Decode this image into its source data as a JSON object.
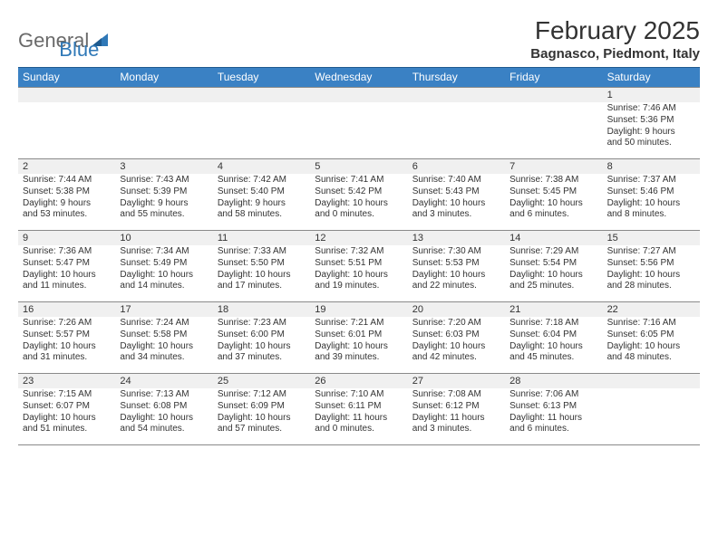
{
  "logo": {
    "text_gray": "General",
    "text_blue": "Blue"
  },
  "title": "February 2025",
  "subtitle": "Bagnasco, Piedmont, Italy",
  "colors": {
    "header_bg": "#3a81c4",
    "header_text": "#ffffff",
    "daynum_bg": "#f0f0f0",
    "border": "#8a8a8a",
    "text": "#333333",
    "logo_gray": "#6a6a6a",
    "logo_blue": "#2f78b7"
  },
  "day_headers": [
    "Sunday",
    "Monday",
    "Tuesday",
    "Wednesday",
    "Thursday",
    "Friday",
    "Saturday"
  ],
  "weeks": [
    [
      {
        "n": "",
        "lines": []
      },
      {
        "n": "",
        "lines": []
      },
      {
        "n": "",
        "lines": []
      },
      {
        "n": "",
        "lines": []
      },
      {
        "n": "",
        "lines": []
      },
      {
        "n": "",
        "lines": []
      },
      {
        "n": "1",
        "lines": [
          "Sunrise: 7:46 AM",
          "Sunset: 5:36 PM",
          "Daylight: 9 hours",
          "and 50 minutes."
        ]
      }
    ],
    [
      {
        "n": "2",
        "lines": [
          "Sunrise: 7:44 AM",
          "Sunset: 5:38 PM",
          "Daylight: 9 hours",
          "and 53 minutes."
        ]
      },
      {
        "n": "3",
        "lines": [
          "Sunrise: 7:43 AM",
          "Sunset: 5:39 PM",
          "Daylight: 9 hours",
          "and 55 minutes."
        ]
      },
      {
        "n": "4",
        "lines": [
          "Sunrise: 7:42 AM",
          "Sunset: 5:40 PM",
          "Daylight: 9 hours",
          "and 58 minutes."
        ]
      },
      {
        "n": "5",
        "lines": [
          "Sunrise: 7:41 AM",
          "Sunset: 5:42 PM",
          "Daylight: 10 hours",
          "and 0 minutes."
        ]
      },
      {
        "n": "6",
        "lines": [
          "Sunrise: 7:40 AM",
          "Sunset: 5:43 PM",
          "Daylight: 10 hours",
          "and 3 minutes."
        ]
      },
      {
        "n": "7",
        "lines": [
          "Sunrise: 7:38 AM",
          "Sunset: 5:45 PM",
          "Daylight: 10 hours",
          "and 6 minutes."
        ]
      },
      {
        "n": "8",
        "lines": [
          "Sunrise: 7:37 AM",
          "Sunset: 5:46 PM",
          "Daylight: 10 hours",
          "and 8 minutes."
        ]
      }
    ],
    [
      {
        "n": "9",
        "lines": [
          "Sunrise: 7:36 AM",
          "Sunset: 5:47 PM",
          "Daylight: 10 hours",
          "and 11 minutes."
        ]
      },
      {
        "n": "10",
        "lines": [
          "Sunrise: 7:34 AM",
          "Sunset: 5:49 PM",
          "Daylight: 10 hours",
          "and 14 minutes."
        ]
      },
      {
        "n": "11",
        "lines": [
          "Sunrise: 7:33 AM",
          "Sunset: 5:50 PM",
          "Daylight: 10 hours",
          "and 17 minutes."
        ]
      },
      {
        "n": "12",
        "lines": [
          "Sunrise: 7:32 AM",
          "Sunset: 5:51 PM",
          "Daylight: 10 hours",
          "and 19 minutes."
        ]
      },
      {
        "n": "13",
        "lines": [
          "Sunrise: 7:30 AM",
          "Sunset: 5:53 PM",
          "Daylight: 10 hours",
          "and 22 minutes."
        ]
      },
      {
        "n": "14",
        "lines": [
          "Sunrise: 7:29 AM",
          "Sunset: 5:54 PM",
          "Daylight: 10 hours",
          "and 25 minutes."
        ]
      },
      {
        "n": "15",
        "lines": [
          "Sunrise: 7:27 AM",
          "Sunset: 5:56 PM",
          "Daylight: 10 hours",
          "and 28 minutes."
        ]
      }
    ],
    [
      {
        "n": "16",
        "lines": [
          "Sunrise: 7:26 AM",
          "Sunset: 5:57 PM",
          "Daylight: 10 hours",
          "and 31 minutes."
        ]
      },
      {
        "n": "17",
        "lines": [
          "Sunrise: 7:24 AM",
          "Sunset: 5:58 PM",
          "Daylight: 10 hours",
          "and 34 minutes."
        ]
      },
      {
        "n": "18",
        "lines": [
          "Sunrise: 7:23 AM",
          "Sunset: 6:00 PM",
          "Daylight: 10 hours",
          "and 37 minutes."
        ]
      },
      {
        "n": "19",
        "lines": [
          "Sunrise: 7:21 AM",
          "Sunset: 6:01 PM",
          "Daylight: 10 hours",
          "and 39 minutes."
        ]
      },
      {
        "n": "20",
        "lines": [
          "Sunrise: 7:20 AM",
          "Sunset: 6:03 PM",
          "Daylight: 10 hours",
          "and 42 minutes."
        ]
      },
      {
        "n": "21",
        "lines": [
          "Sunrise: 7:18 AM",
          "Sunset: 6:04 PM",
          "Daylight: 10 hours",
          "and 45 minutes."
        ]
      },
      {
        "n": "22",
        "lines": [
          "Sunrise: 7:16 AM",
          "Sunset: 6:05 PM",
          "Daylight: 10 hours",
          "and 48 minutes."
        ]
      }
    ],
    [
      {
        "n": "23",
        "lines": [
          "Sunrise: 7:15 AM",
          "Sunset: 6:07 PM",
          "Daylight: 10 hours",
          "and 51 minutes."
        ]
      },
      {
        "n": "24",
        "lines": [
          "Sunrise: 7:13 AM",
          "Sunset: 6:08 PM",
          "Daylight: 10 hours",
          "and 54 minutes."
        ]
      },
      {
        "n": "25",
        "lines": [
          "Sunrise: 7:12 AM",
          "Sunset: 6:09 PM",
          "Daylight: 10 hours",
          "and 57 minutes."
        ]
      },
      {
        "n": "26",
        "lines": [
          "Sunrise: 7:10 AM",
          "Sunset: 6:11 PM",
          "Daylight: 11 hours",
          "and 0 minutes."
        ]
      },
      {
        "n": "27",
        "lines": [
          "Sunrise: 7:08 AM",
          "Sunset: 6:12 PM",
          "Daylight: 11 hours",
          "and 3 minutes."
        ]
      },
      {
        "n": "28",
        "lines": [
          "Sunrise: 7:06 AM",
          "Sunset: 6:13 PM",
          "Daylight: 11 hours",
          "and 6 minutes."
        ]
      },
      {
        "n": "",
        "lines": []
      }
    ]
  ]
}
